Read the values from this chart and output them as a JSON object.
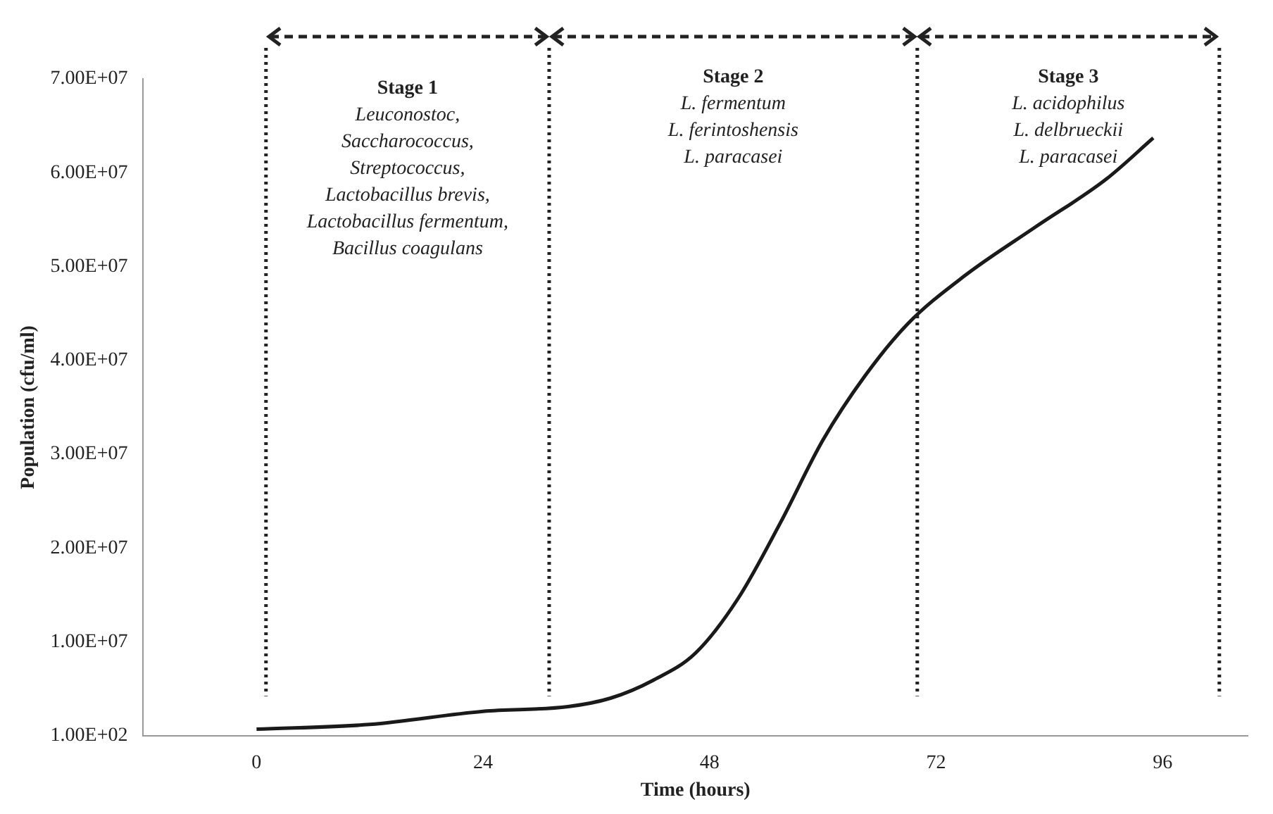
{
  "chart_data": {
    "type": "line",
    "xlabel": "Time (hours)",
    "ylabel": "Population (cfu/ml)",
    "x": [
      0,
      12,
      24,
      33,
      37.5,
      42,
      46.5,
      51,
      55.5,
      60,
      64.5,
      69,
      75,
      82.5,
      90,
      95
    ],
    "series": [
      {
        "color": "#1a1a1a",
        "values": [
          700000,
          1200000,
          2600000,
          3100000,
          4000000,
          5900000,
          8800000,
          14600000,
          22700000,
          31500000,
          38400000,
          43900000,
          49000000,
          54200000,
          59300000,
          63700000
        ]
      }
    ],
    "xlim": [
      -12,
      105
    ],
    "xticks": [
      0,
      24,
      48,
      72,
      96
    ],
    "ylim": [
      100,
      70000000
    ],
    "yticks": [
      {
        "value": 100,
        "label": "1.00E+02"
      },
      {
        "value": 10000000,
        "label": "1.00E+07"
      },
      {
        "value": 20000000,
        "label": "2.00E+07"
      },
      {
        "value": 30000000,
        "label": "3.00E+07"
      },
      {
        "value": 40000000,
        "label": "4.00E+07"
      },
      {
        "value": 50000000,
        "label": "5.00E+07"
      },
      {
        "value": 60000000,
        "label": "6.00E+07"
      },
      {
        "value": 70000000,
        "label": "7.00E+07"
      }
    ],
    "ref_lines": [
      {
        "axis": "x",
        "value": 1,
        "line_style": "dotted",
        "color": "#222222"
      },
      {
        "axis": "x",
        "value": 31,
        "line_style": "dotted",
        "color": "#222222"
      },
      {
        "axis": "x",
        "value": 70,
        "line_style": "dotted",
        "color": "#222222"
      },
      {
        "axis": "x",
        "value": 102,
        "line_style": "dotted",
        "color": "#222222"
      }
    ],
    "annotations": [
      "Stage 1\nLeuconostoc,\nSaccharococcus,\nStreptococcus,\nLactobacillus brevis,\nLactobacillus fermentum,\nBacillus coagulans",
      "Stage 2\nL. fermentum\nL. ferintoshensis\nL. paracasei",
      "Stage 3\nL. acidophilus\nL. delbrueckii\nL. paracasei"
    ],
    "grid": false,
    "legend": false,
    "marker": "none",
    "line_style": "solid"
  }
}
